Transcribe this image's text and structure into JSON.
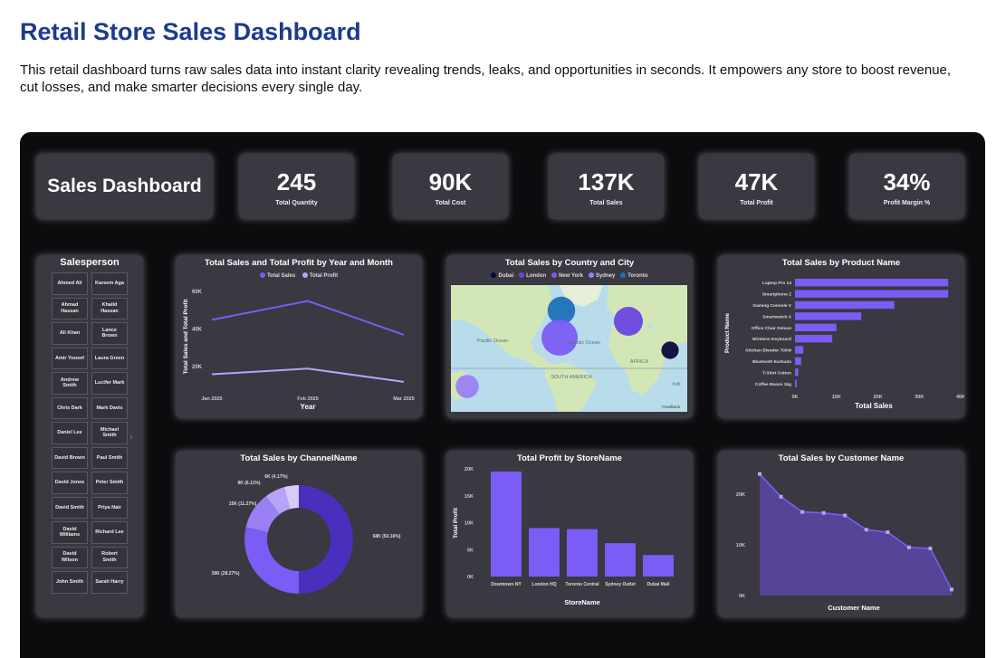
{
  "page": {
    "title": "Retail Store Sales Dashboard",
    "description": "This retail dashboard turns raw sales data into instant clarity revealing trends, leaks, and opportunities in seconds. It empowers any store to boost revenue, cut losses, and make smarter decisions every single day."
  },
  "dashboard": {
    "title": "Sales Dashboard",
    "kpis": [
      {
        "value": "245",
        "label": "Total Quantity"
      },
      {
        "value": "90K",
        "label": "Total Cost"
      },
      {
        "value": "137K",
        "label": "Total Sales"
      },
      {
        "value": "47K",
        "label": "Total Profit"
      },
      {
        "value": "34%",
        "label": "Profit Margin %"
      }
    ],
    "salesperson": {
      "title": "Salesperson",
      "names": [
        "Ahmed Ali",
        "Kareem Aga",
        "Ahmad Hassan",
        "Khalid Hassan",
        "Ali Khan",
        "Lance Brown",
        "Amir Yousef",
        "Laura Green",
        "Andrew Smith",
        "Lucifer Mark",
        "Chris Dark",
        "Mark Davis",
        "Daniel Lee",
        "Michael Smith",
        "David Brown",
        "Paul Smith",
        "David Jones",
        "Peter Smith",
        "David Smith",
        "Priya Nair",
        "David Williams",
        "Richard Lee",
        "David Wilson",
        "Robert Smith",
        "John Smith",
        "Sarah Harry"
      ]
    },
    "colors": {
      "primary": "#7b5cf5",
      "light": "#b7a4f8",
      "dark": "#4a2fbd",
      "card": "#3a3840",
      "background": "#0c0c0f"
    }
  },
  "chart_data": [
    {
      "type": "line",
      "title": "Total Sales and Total Profit by Year and Month",
      "xlabel": "Year",
      "ylabel": "Total Sales and Total Profit",
      "categories": [
        "Jan 2025",
        "Feb 2025",
        "Mar 2025"
      ],
      "series": [
        {
          "name": "Total Sales",
          "values": [
            45000,
            55000,
            37000
          ]
        },
        {
          "name": "Total Profit",
          "values": [
            16000,
            19000,
            12000
          ]
        }
      ],
      "yticks": [
        "20K",
        "40K",
        "60K"
      ],
      "ylim": [
        10000,
        62000
      ],
      "legend": "top"
    },
    {
      "type": "scatter",
      "title": "Total Sales by Country and City",
      "legend_entries": [
        "Dubai",
        "London",
        "New York",
        "Sydney",
        "Toronto"
      ],
      "map_labels": [
        "Pacific Ocean",
        "Atlantic Ocean",
        "AFRICA",
        "SOUTH AMERICA",
        "Indi"
      ],
      "attribution": "Feedback",
      "points": [
        {
          "city": "Toronto",
          "color": "#1f6fb8",
          "size": 0.7
        },
        {
          "city": "New York",
          "color": "#7b5cf5",
          "size": 1.0
        },
        {
          "city": "London",
          "color": "#6a46e0",
          "size": 0.75
        },
        {
          "city": "Dubai",
          "color": "#0a0a3a",
          "size": 0.35
        },
        {
          "city": "Sydney",
          "color": "#9a7ff5",
          "size": 0.55
        }
      ]
    },
    {
      "type": "bar",
      "orientation": "horizontal",
      "title": "Total Sales by Product Name",
      "xlabel": "Total Sales",
      "ylabel": "Product Name",
      "categories": [
        "Laptop Pro 14",
        "Smartphone Z",
        "Gaming Console V",
        "Smartwatch X",
        "Office Chair Deluxe",
        "Wireless Keyboard",
        "Kitchen Blender 700W",
        "Bluetooth Earbuds",
        "T-Shirt Cotton",
        "Coffee Beans 1kg"
      ],
      "values": [
        37000,
        37000,
        24000,
        16000,
        10000,
        9000,
        2000,
        1500,
        800,
        400
      ],
      "xticks": [
        "0K",
        "10K",
        "20K",
        "30K",
        "40K"
      ],
      "xlim": [
        0,
        40000
      ]
    },
    {
      "type": "pie",
      "title": "Total Sales by ChannelName",
      "slices": [
        {
          "label": "68K (50.16%)",
          "value": 68000,
          "color": "#4a2fbd"
        },
        {
          "label": "39K (28.27%)",
          "value": 39000,
          "color": "#7b5cf5"
        },
        {
          "label": "15K (11.27%)",
          "value": 15000,
          "color": "#9a7ff5"
        },
        {
          "label": "8K (6.11%)",
          "value": 8000,
          "color": "#b7a4f8"
        },
        {
          "label": "6K (4.17%)",
          "value": 6000,
          "color": "#d6cbfa"
        }
      ]
    },
    {
      "type": "bar",
      "title": "Total Profit by StoreName",
      "xlabel": "StoreName",
      "ylabel": "Total Profit",
      "categories": [
        "Downtown NY",
        "London HQ",
        "Toronto Central",
        "Sydney Outlet",
        "Dubai Mall"
      ],
      "values": [
        19500,
        9000,
        8800,
        6200,
        4000
      ],
      "yticks": [
        "0K",
        "5K",
        "10K",
        "15K",
        "20K"
      ],
      "ylim": [
        0,
        20000
      ]
    },
    {
      "type": "area",
      "title": "Total Sales by Customer Name",
      "xlabel": "Customer Name",
      "values": [
        24000,
        19500,
        16500,
        16300,
        15800,
        13000,
        12500,
        9500,
        9300,
        1200
      ],
      "yticks": [
        "0K",
        "10K",
        "20K"
      ],
      "ylim": [
        0,
        25000
      ]
    }
  ]
}
